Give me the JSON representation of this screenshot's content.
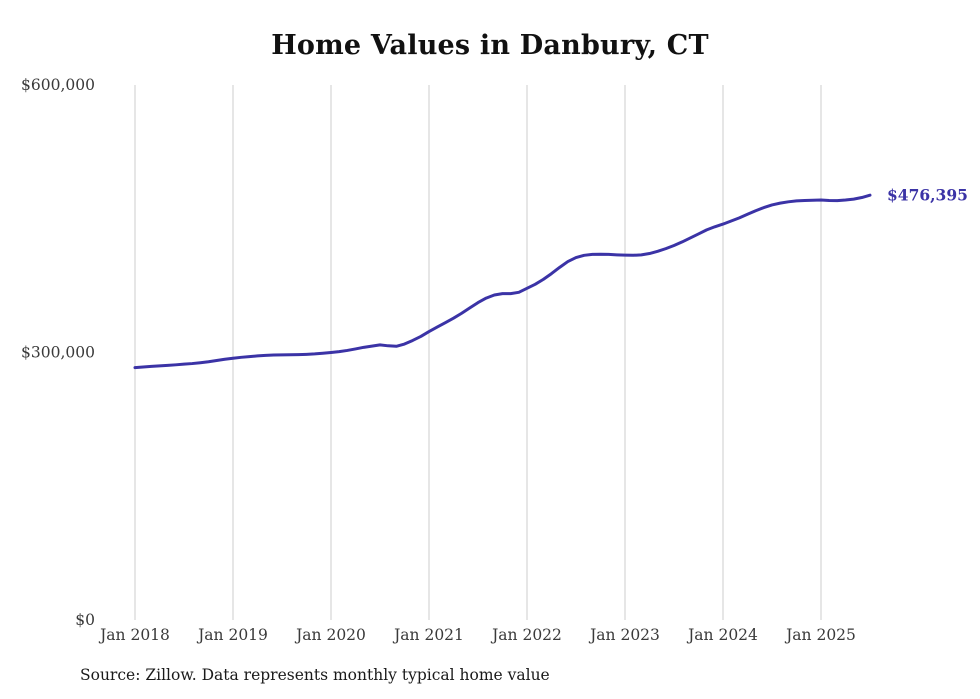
{
  "title": "Home Values in Danbury, CT",
  "source_note": "Source: Zillow. Data represents monthly typical home value",
  "chart_data": {
    "type": "line",
    "title": "Home Values in Danbury, CT",
    "xlabel": "",
    "ylabel": "",
    "ylim": [
      0,
      600000
    ],
    "grid": "vertical",
    "legend": "none",
    "line_color": "#3b33a6",
    "grid_color": "#cccccc",
    "tick_color": "#3a3a3a",
    "end_label": "$476,395",
    "yticks": [
      {
        "value": 0,
        "label": "$0"
      },
      {
        "value": 300000,
        "label": "$300,000"
      },
      {
        "value": 600000,
        "label": "$600,000"
      }
    ],
    "xticks": [
      "Jan 2018",
      "Jan 2019",
      "Jan 2020",
      "Jan 2021",
      "Jan 2022",
      "Jan 2023",
      "Jan 2024",
      "Jan 2025"
    ],
    "x": [
      "2018-01",
      "2018-02",
      "2018-03",
      "2018-04",
      "2018-05",
      "2018-06",
      "2018-07",
      "2018-08",
      "2018-09",
      "2018-10",
      "2018-11",
      "2018-12",
      "2019-01",
      "2019-02",
      "2019-03",
      "2019-04",
      "2019-05",
      "2019-06",
      "2019-07",
      "2019-08",
      "2019-09",
      "2019-10",
      "2019-11",
      "2019-12",
      "2020-01",
      "2020-02",
      "2020-03",
      "2020-04",
      "2020-05",
      "2020-06",
      "2020-07",
      "2020-08",
      "2020-09",
      "2020-10",
      "2020-11",
      "2020-12",
      "2021-01",
      "2021-02",
      "2021-03",
      "2021-04",
      "2021-05",
      "2021-06",
      "2021-07",
      "2021-08",
      "2021-09",
      "2021-10",
      "2021-11",
      "2021-12",
      "2022-01",
      "2022-02",
      "2022-03",
      "2022-04",
      "2022-05",
      "2022-06",
      "2022-07",
      "2022-08",
      "2022-09",
      "2022-10",
      "2022-11",
      "2022-12",
      "2023-01",
      "2023-02",
      "2023-03",
      "2023-04",
      "2023-05",
      "2023-06",
      "2023-07",
      "2023-08",
      "2023-09",
      "2023-10",
      "2023-11",
      "2023-12",
      "2024-01",
      "2024-02",
      "2024-03",
      "2024-04",
      "2024-05",
      "2024-06",
      "2024-07",
      "2024-08",
      "2024-09",
      "2024-10",
      "2024-11",
      "2024-12",
      "2025-01",
      "2025-02",
      "2025-03",
      "2025-04",
      "2025-05",
      "2025-06",
      "2025-07"
    ],
    "values": [
      283000,
      283800,
      284400,
      285000,
      285600,
      286200,
      286900,
      287600,
      288500,
      289600,
      291000,
      292400,
      293600,
      294600,
      295400,
      296200,
      296800,
      297200,
      297400,
      297500,
      297600,
      297900,
      298400,
      299100,
      300000,
      301000,
      302300,
      304000,
      305800,
      307200,
      308500,
      307500,
      307000,
      309500,
      313500,
      318000,
      323500,
      328500,
      333500,
      338500,
      344000,
      350000,
      356000,
      361000,
      364500,
      366000,
      366000,
      367500,
      372000,
      376500,
      382000,
      388500,
      395500,
      402000,
      406500,
      409000,
      410000,
      410200,
      410000,
      409500,
      409200,
      409000,
      409500,
      411000,
      413500,
      416500,
      420000,
      424000,
      428500,
      433000,
      437500,
      441000,
      444000,
      447500,
      451000,
      455000,
      459000,
      462500,
      465500,
      467500,
      469000,
      470000,
      470500,
      470800,
      471000,
      470500,
      470300,
      471000,
      472000,
      473800,
      476395
    ]
  }
}
